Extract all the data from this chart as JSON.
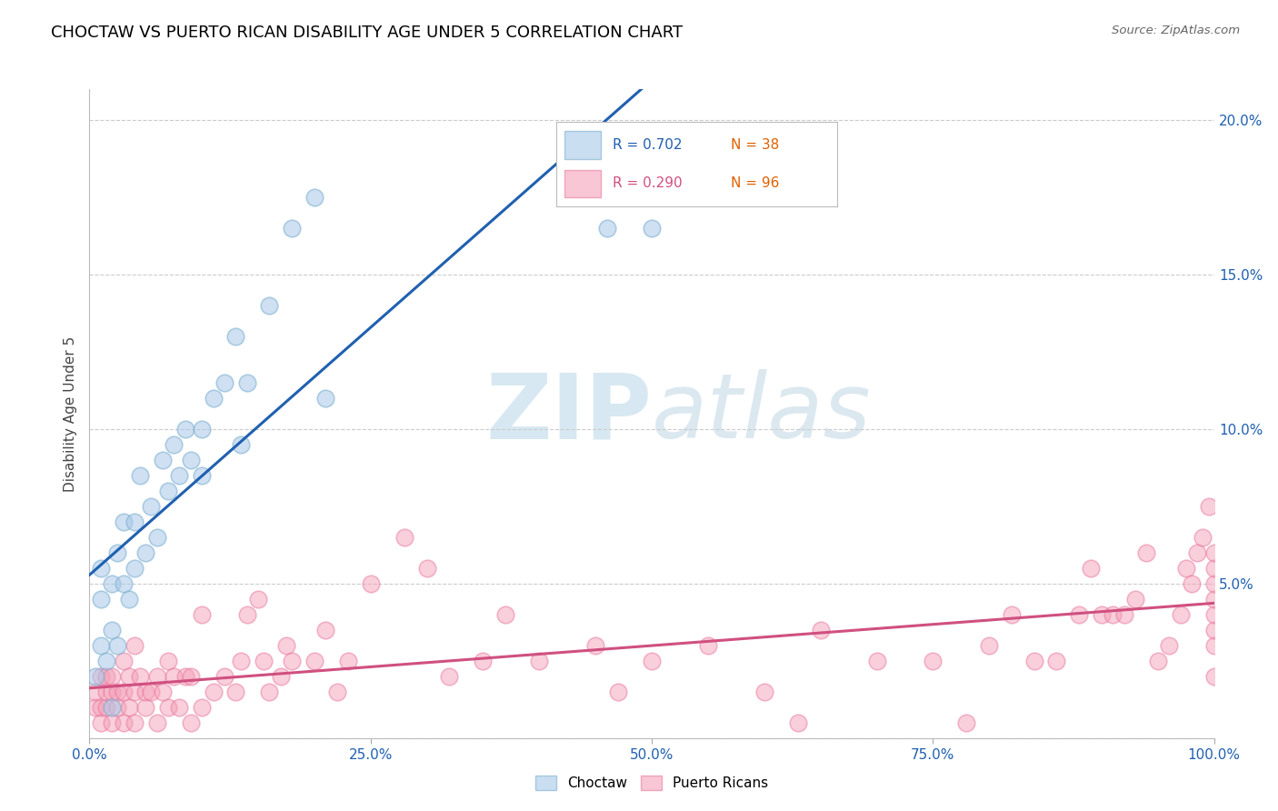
{
  "title": "CHOCTAW VS PUERTO RICAN DISABILITY AGE UNDER 5 CORRELATION CHART",
  "source": "Source: ZipAtlas.com",
  "ylabel": "Disability Age Under 5",
  "legend_choctaw": "Choctaw",
  "legend_puerto_rican": "Puerto Ricans",
  "choctaw_R": 0.702,
  "choctaw_N": 38,
  "puerto_rican_R": 0.29,
  "puerto_rican_N": 96,
  "choctaw_color": "#a8c8e8",
  "puerto_rican_color": "#f4a0b8",
  "choctaw_edge_color": "#7aafd0",
  "puerto_rican_edge_color": "#e87aa0",
  "choctaw_line_color": "#2060b0",
  "puerto_rican_line_color": "#d05080",
  "legend_box_color": "#dddddd",
  "watermark_color": "#d0e4f0",
  "xlim": [
    0.0,
    1.0
  ],
  "ylim": [
    0.0,
    0.21
  ],
  "xticks": [
    0.0,
    0.25,
    0.5,
    0.75,
    1.0
  ],
  "xtick_labels": [
    "0.0%",
    "25.0%",
    "50.0%",
    "75.0%",
    "100.0%"
  ],
  "yticks": [
    0.0,
    0.05,
    0.1,
    0.15,
    0.2
  ],
  "ytick_labels": [
    "",
    "5.0%",
    "10.0%",
    "15.0%",
    "20.0%"
  ],
  "choctaw_x": [
    0.005,
    0.01,
    0.01,
    0.01,
    0.015,
    0.02,
    0.02,
    0.02,
    0.025,
    0.025,
    0.03,
    0.03,
    0.035,
    0.04,
    0.04,
    0.045,
    0.05,
    0.055,
    0.06,
    0.065,
    0.07,
    0.075,
    0.08,
    0.085,
    0.09,
    0.1,
    0.1,
    0.11,
    0.12,
    0.13,
    0.135,
    0.14,
    0.16,
    0.18,
    0.2,
    0.21,
    0.46,
    0.5
  ],
  "choctaw_y": [
    0.02,
    0.03,
    0.045,
    0.055,
    0.025,
    0.01,
    0.035,
    0.05,
    0.03,
    0.06,
    0.05,
    0.07,
    0.045,
    0.055,
    0.07,
    0.085,
    0.06,
    0.075,
    0.065,
    0.09,
    0.08,
    0.095,
    0.085,
    0.1,
    0.09,
    0.085,
    0.1,
    0.11,
    0.115,
    0.13,
    0.095,
    0.115,
    0.14,
    0.165,
    0.175,
    0.11,
    0.165,
    0.165
  ],
  "puerto_rican_x": [
    0.005,
    0.005,
    0.01,
    0.01,
    0.01,
    0.015,
    0.015,
    0.015,
    0.02,
    0.02,
    0.02,
    0.025,
    0.025,
    0.03,
    0.03,
    0.03,
    0.035,
    0.035,
    0.04,
    0.04,
    0.04,
    0.045,
    0.05,
    0.05,
    0.055,
    0.06,
    0.06,
    0.065,
    0.07,
    0.07,
    0.075,
    0.08,
    0.085,
    0.09,
    0.09,
    0.1,
    0.1,
    0.11,
    0.12,
    0.13,
    0.135,
    0.14,
    0.15,
    0.155,
    0.16,
    0.17,
    0.175,
    0.18,
    0.2,
    0.21,
    0.22,
    0.23,
    0.25,
    0.28,
    0.3,
    0.32,
    0.35,
    0.37,
    0.4,
    0.45,
    0.47,
    0.5,
    0.55,
    0.6,
    0.63,
    0.65,
    0.7,
    0.75,
    0.78,
    0.8,
    0.82,
    0.84,
    0.86,
    0.88,
    0.89,
    0.9,
    0.91,
    0.92,
    0.93,
    0.94,
    0.95,
    0.96,
    0.97,
    0.975,
    0.98,
    0.985,
    0.99,
    0.995,
    1.0,
    1.0,
    1.0,
    1.0,
    1.0,
    1.0,
    1.0,
    1.0
  ],
  "puerto_rican_y": [
    0.01,
    0.015,
    0.005,
    0.01,
    0.02,
    0.01,
    0.015,
    0.02,
    0.005,
    0.015,
    0.02,
    0.01,
    0.015,
    0.005,
    0.015,
    0.025,
    0.01,
    0.02,
    0.005,
    0.015,
    0.03,
    0.02,
    0.01,
    0.015,
    0.015,
    0.005,
    0.02,
    0.015,
    0.01,
    0.025,
    0.02,
    0.01,
    0.02,
    0.005,
    0.02,
    0.01,
    0.04,
    0.015,
    0.02,
    0.015,
    0.025,
    0.04,
    0.045,
    0.025,
    0.015,
    0.02,
    0.03,
    0.025,
    0.025,
    0.035,
    0.015,
    0.025,
    0.05,
    0.065,
    0.055,
    0.02,
    0.025,
    0.04,
    0.025,
    0.03,
    0.015,
    0.025,
    0.03,
    0.015,
    0.005,
    0.035,
    0.025,
    0.025,
    0.005,
    0.03,
    0.04,
    0.025,
    0.025,
    0.04,
    0.055,
    0.04,
    0.04,
    0.04,
    0.045,
    0.06,
    0.025,
    0.03,
    0.04,
    0.055,
    0.05,
    0.06,
    0.065,
    0.075,
    0.02,
    0.03,
    0.035,
    0.04,
    0.045,
    0.05,
    0.055,
    0.06
  ]
}
